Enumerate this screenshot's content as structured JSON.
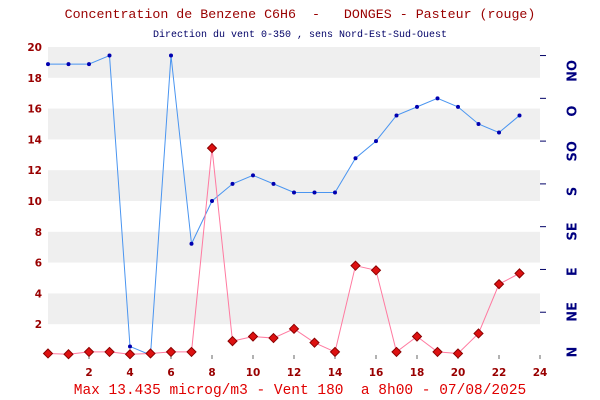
{
  "colors": {
    "title": "#990000",
    "subtitle": "#000066",
    "annotation": "#e00000",
    "axis_labels": "#990000",
    "y2_labels": "#000080",
    "y2_ticks": "#000066",
    "band": "#efefef"
  },
  "chart_data": {
    "type": "line",
    "title": "Concentration de Benzene C6H6  -   DONGES - Pasteur (rouge)",
    "subtitle": "Direction du vent 0-350 , sens Nord-Est-Sud-Ouest",
    "annotations": [
      "Max 13.435 microg/m3 - Vent 180  a 8h00 - 07/08/2025"
    ],
    "x": [
      0,
      1,
      2,
      3,
      4,
      5,
      6,
      7,
      8,
      9,
      10,
      11,
      12,
      13,
      14,
      15,
      16,
      17,
      18,
      19,
      20,
      21,
      22,
      23
    ],
    "xlim": [
      0,
      24
    ],
    "x_ticks": [
      2,
      4,
      6,
      8,
      10,
      12,
      14,
      16,
      18,
      20,
      22,
      24
    ],
    "ylim": [
      0,
      20
    ],
    "y_ticks": [
      2,
      4,
      6,
      8,
      10,
      12,
      14,
      16,
      18,
      20
    ],
    "y2lim": [
      0,
      360
    ],
    "y2_tick_labels": [
      "N",
      "NE",
      "E",
      "SE",
      "S",
      "SO",
      "O",
      "NO"
    ],
    "grid": true,
    "series": [
      {
        "y_axis": 1,
        "color": "#dd1111",
        "edge_color": "#8a0000",
        "line_color": "#ff7aa0",
        "values": [
          0.1,
          0.05,
          0.2,
          0.2,
          0.05,
          0.1,
          0.2,
          0.2,
          13.435,
          0.9,
          1.2,
          1.1,
          1.7,
          0.8,
          0.2,
          5.8,
          5.5,
          0.2,
          1.2,
          0.2,
          0.1,
          1.4,
          4.6,
          5.3
        ]
      },
      {
        "y_axis": 2,
        "color": "#0000b0",
        "line_color": "#4a95f0",
        "values": [
          340,
          340,
          340,
          350,
          10,
          0,
          350,
          130,
          180,
          200,
          210,
          200,
          190,
          190,
          190,
          230,
          250,
          280,
          290,
          300,
          290,
          270,
          260,
          280
        ]
      }
    ]
  }
}
